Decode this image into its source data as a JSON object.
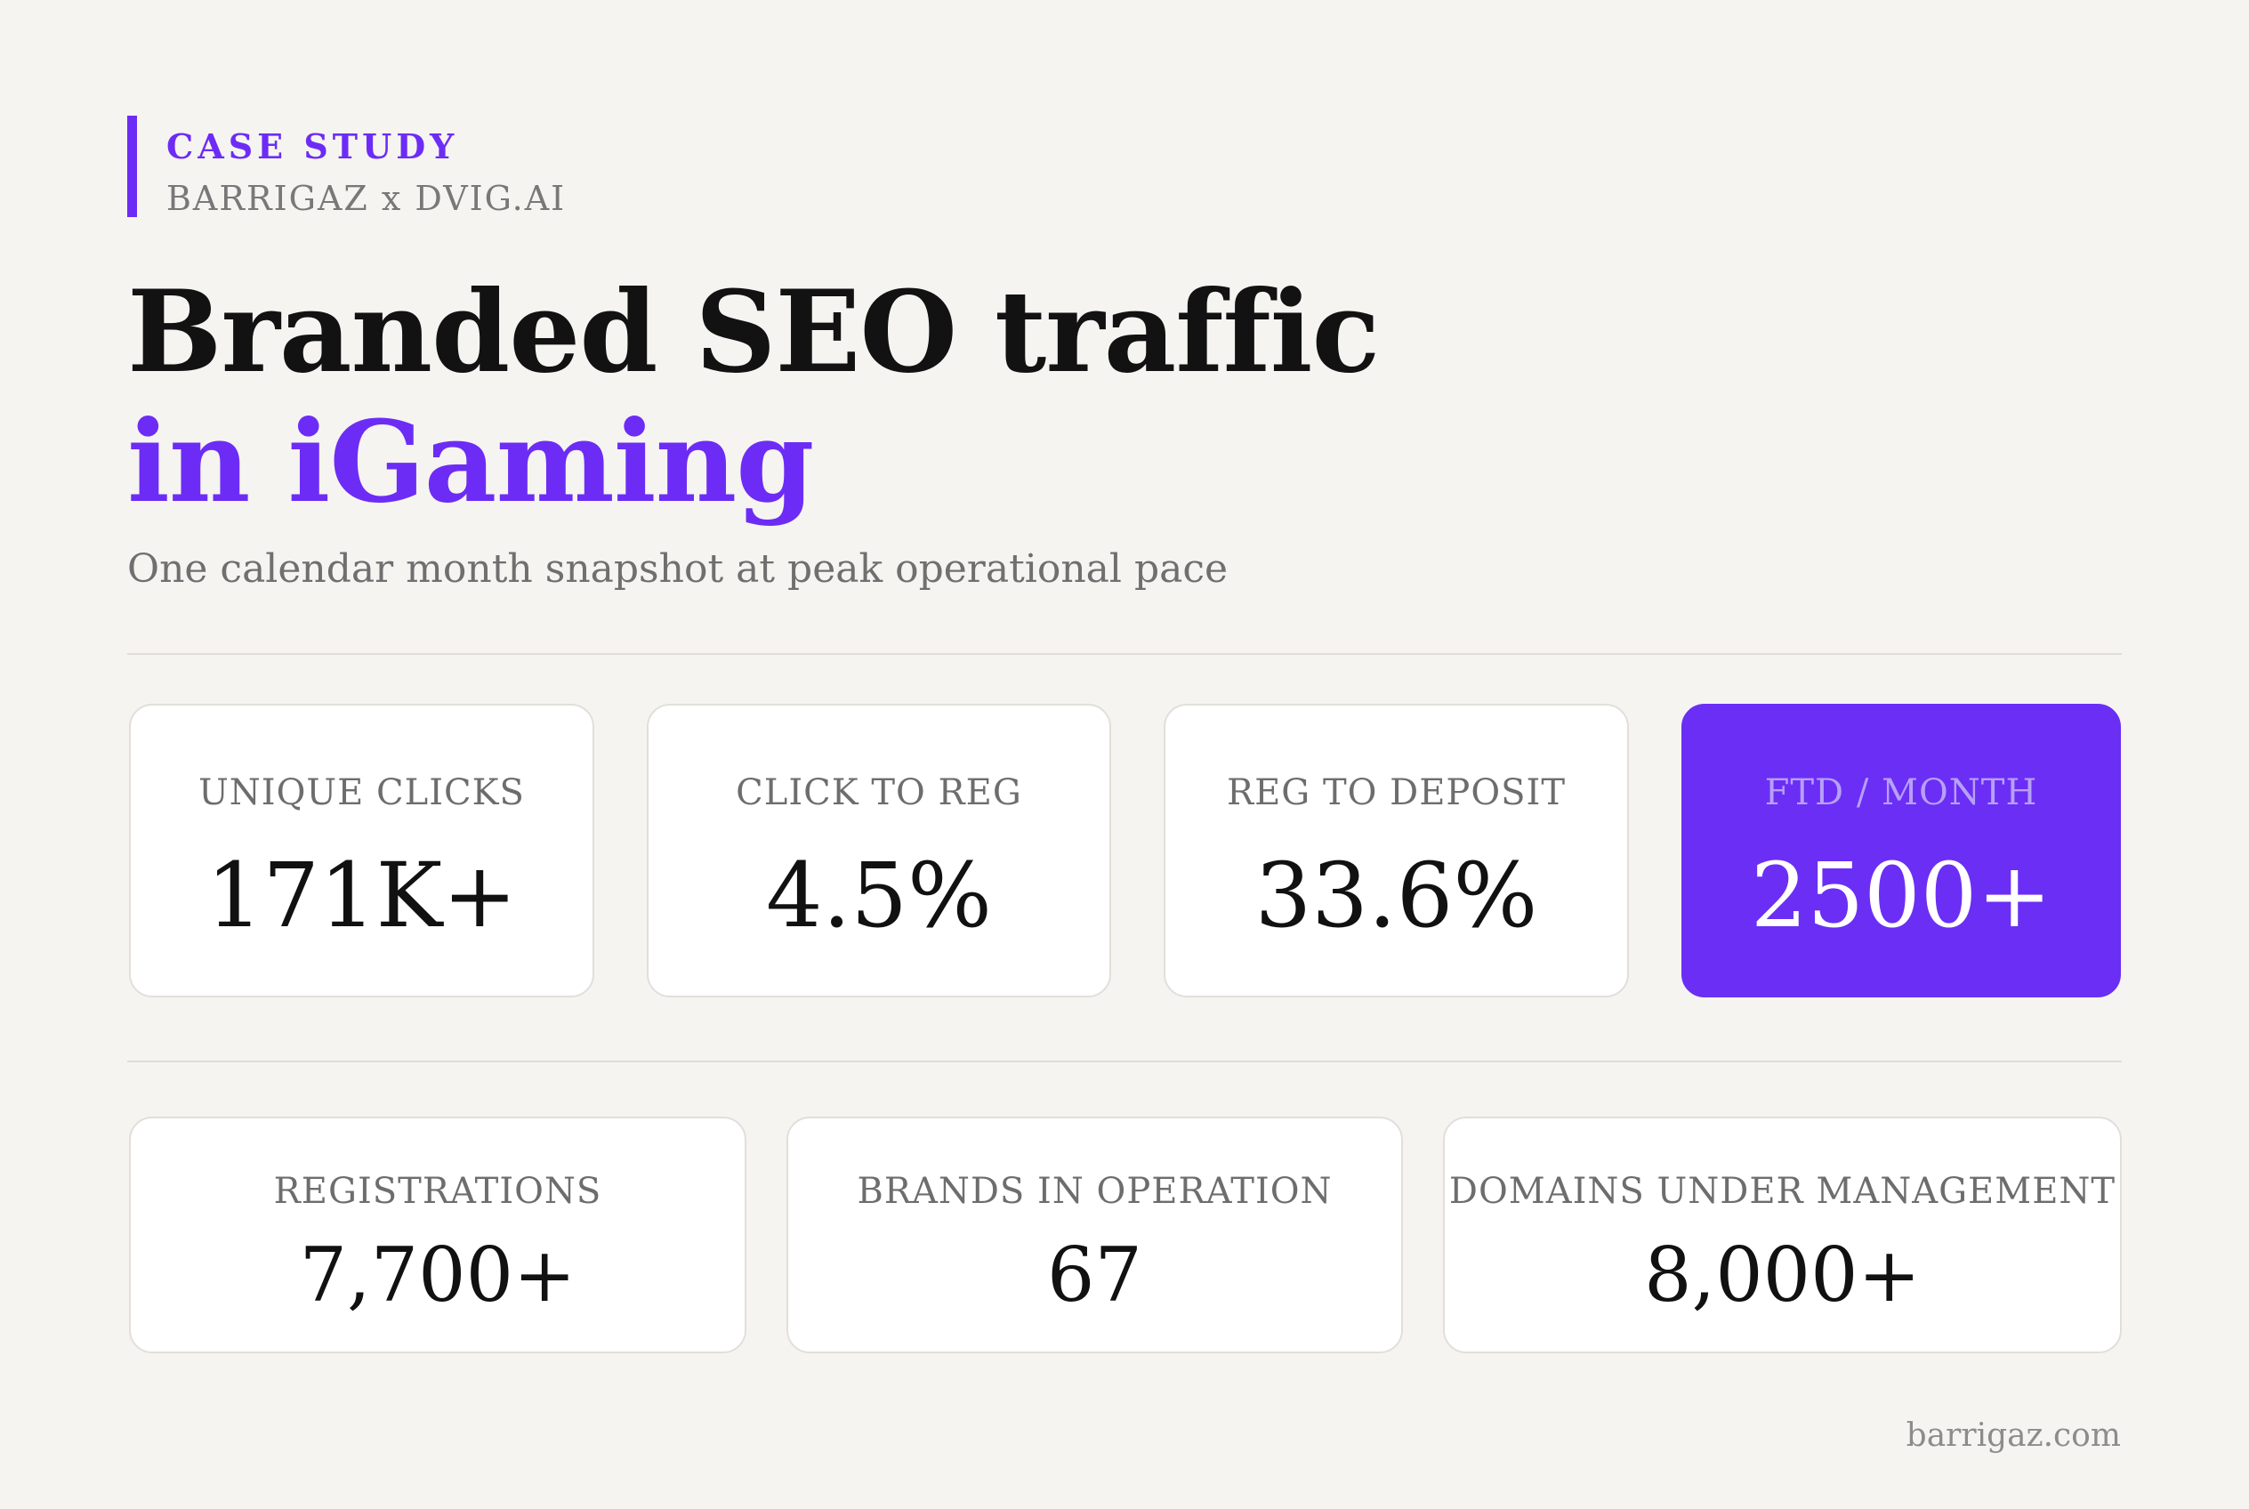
{
  "header": {
    "tag_label": "CASE STUDY",
    "tag_sub": "BARRIGAZ x DVIG.AI",
    "title_line1": "Branded SEO traffic",
    "title_line2": "in iGaming",
    "subtitle": "One calendar month snapshot at peak operational pace"
  },
  "colors": {
    "accent": "#6d2cf5",
    "highlight_card": "#6b2ef5",
    "background": "#f5f4f1"
  },
  "metrics_primary": [
    {
      "label": "UNIQUE CLICKS",
      "value": "171K+"
    },
    {
      "label": "CLICK TO REG",
      "value": "4.5%"
    },
    {
      "label": "REG TO DEPOSIT",
      "value": "33.6%"
    },
    {
      "label": "FTD / MONTH",
      "value": "2500+"
    }
  ],
  "metrics_secondary": [
    {
      "label": "REGISTRATIONS",
      "value": "7,700+"
    },
    {
      "label": "BRANDS IN OPERATION",
      "value": "67"
    },
    {
      "label": "DOMAINS UNDER MANAGEMENT",
      "value": "8,000+"
    }
  ],
  "footer": {
    "site": "barrigaz.com"
  }
}
